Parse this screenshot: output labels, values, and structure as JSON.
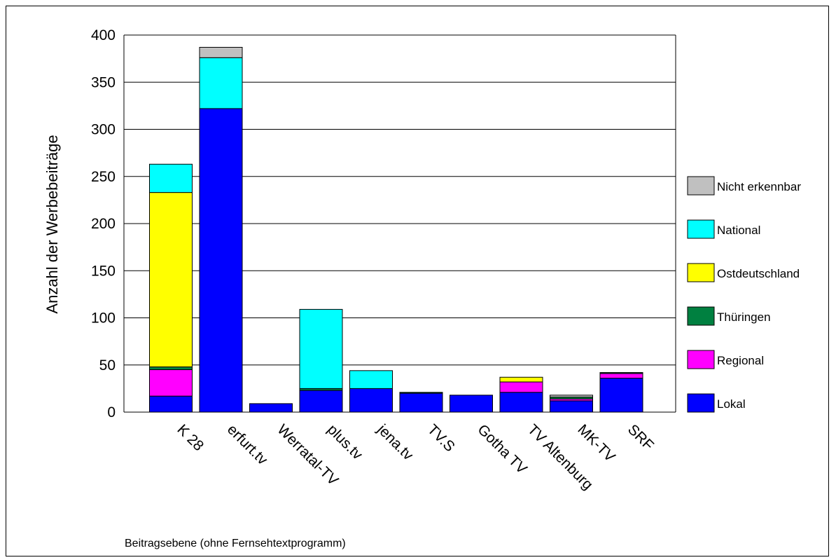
{
  "chart_data": {
    "type": "bar",
    "stacked": true,
    "ylabel": "Anzahl der Werbebeiträge",
    "xlabel": "Beitragsebene (ohne Fernsehtextprogramm)",
    "ylim": [
      0,
      400
    ],
    "yticks": [
      0,
      50,
      100,
      150,
      200,
      250,
      300,
      350,
      400
    ],
    "grid": "horizontal",
    "legend_position": "right",
    "categories": [
      "K 28",
      "erfurt.tv",
      "Werratal-TV",
      "plus.tv",
      "jena.tv",
      "TV.S",
      "Gotha TV",
      "TV Altenburg",
      "MK-TV",
      "SRF"
    ],
    "series": [
      {
        "name": "Lokal",
        "color": "#0000ff",
        "values": [
          17,
          322,
          9,
          23,
          25,
          20,
          18,
          21,
          12,
          36
        ]
      },
      {
        "name": "Regional",
        "color": "#ff00ff",
        "values": [
          28,
          0,
          0,
          0,
          0,
          0,
          0,
          11,
          2,
          5
        ]
      },
      {
        "name": "Thüringen",
        "color": "#008040",
        "values": [
          3,
          0,
          0,
          2,
          0,
          1,
          0,
          0,
          2,
          1
        ]
      },
      {
        "name": "Ostdeutschland",
        "color": "#ffff00",
        "values": [
          185,
          0,
          0,
          0,
          0,
          0,
          0,
          5,
          0,
          0
        ]
      },
      {
        "name": "National",
        "color": "#00ffff",
        "values": [
          30,
          54,
          0,
          84,
          19,
          0,
          0,
          0,
          0,
          0
        ]
      },
      {
        "name": "Nicht erkennbar",
        "color": "#c0c0c0",
        "values": [
          0,
          11,
          0,
          0,
          0,
          0,
          0,
          0,
          2,
          0
        ]
      }
    ]
  }
}
